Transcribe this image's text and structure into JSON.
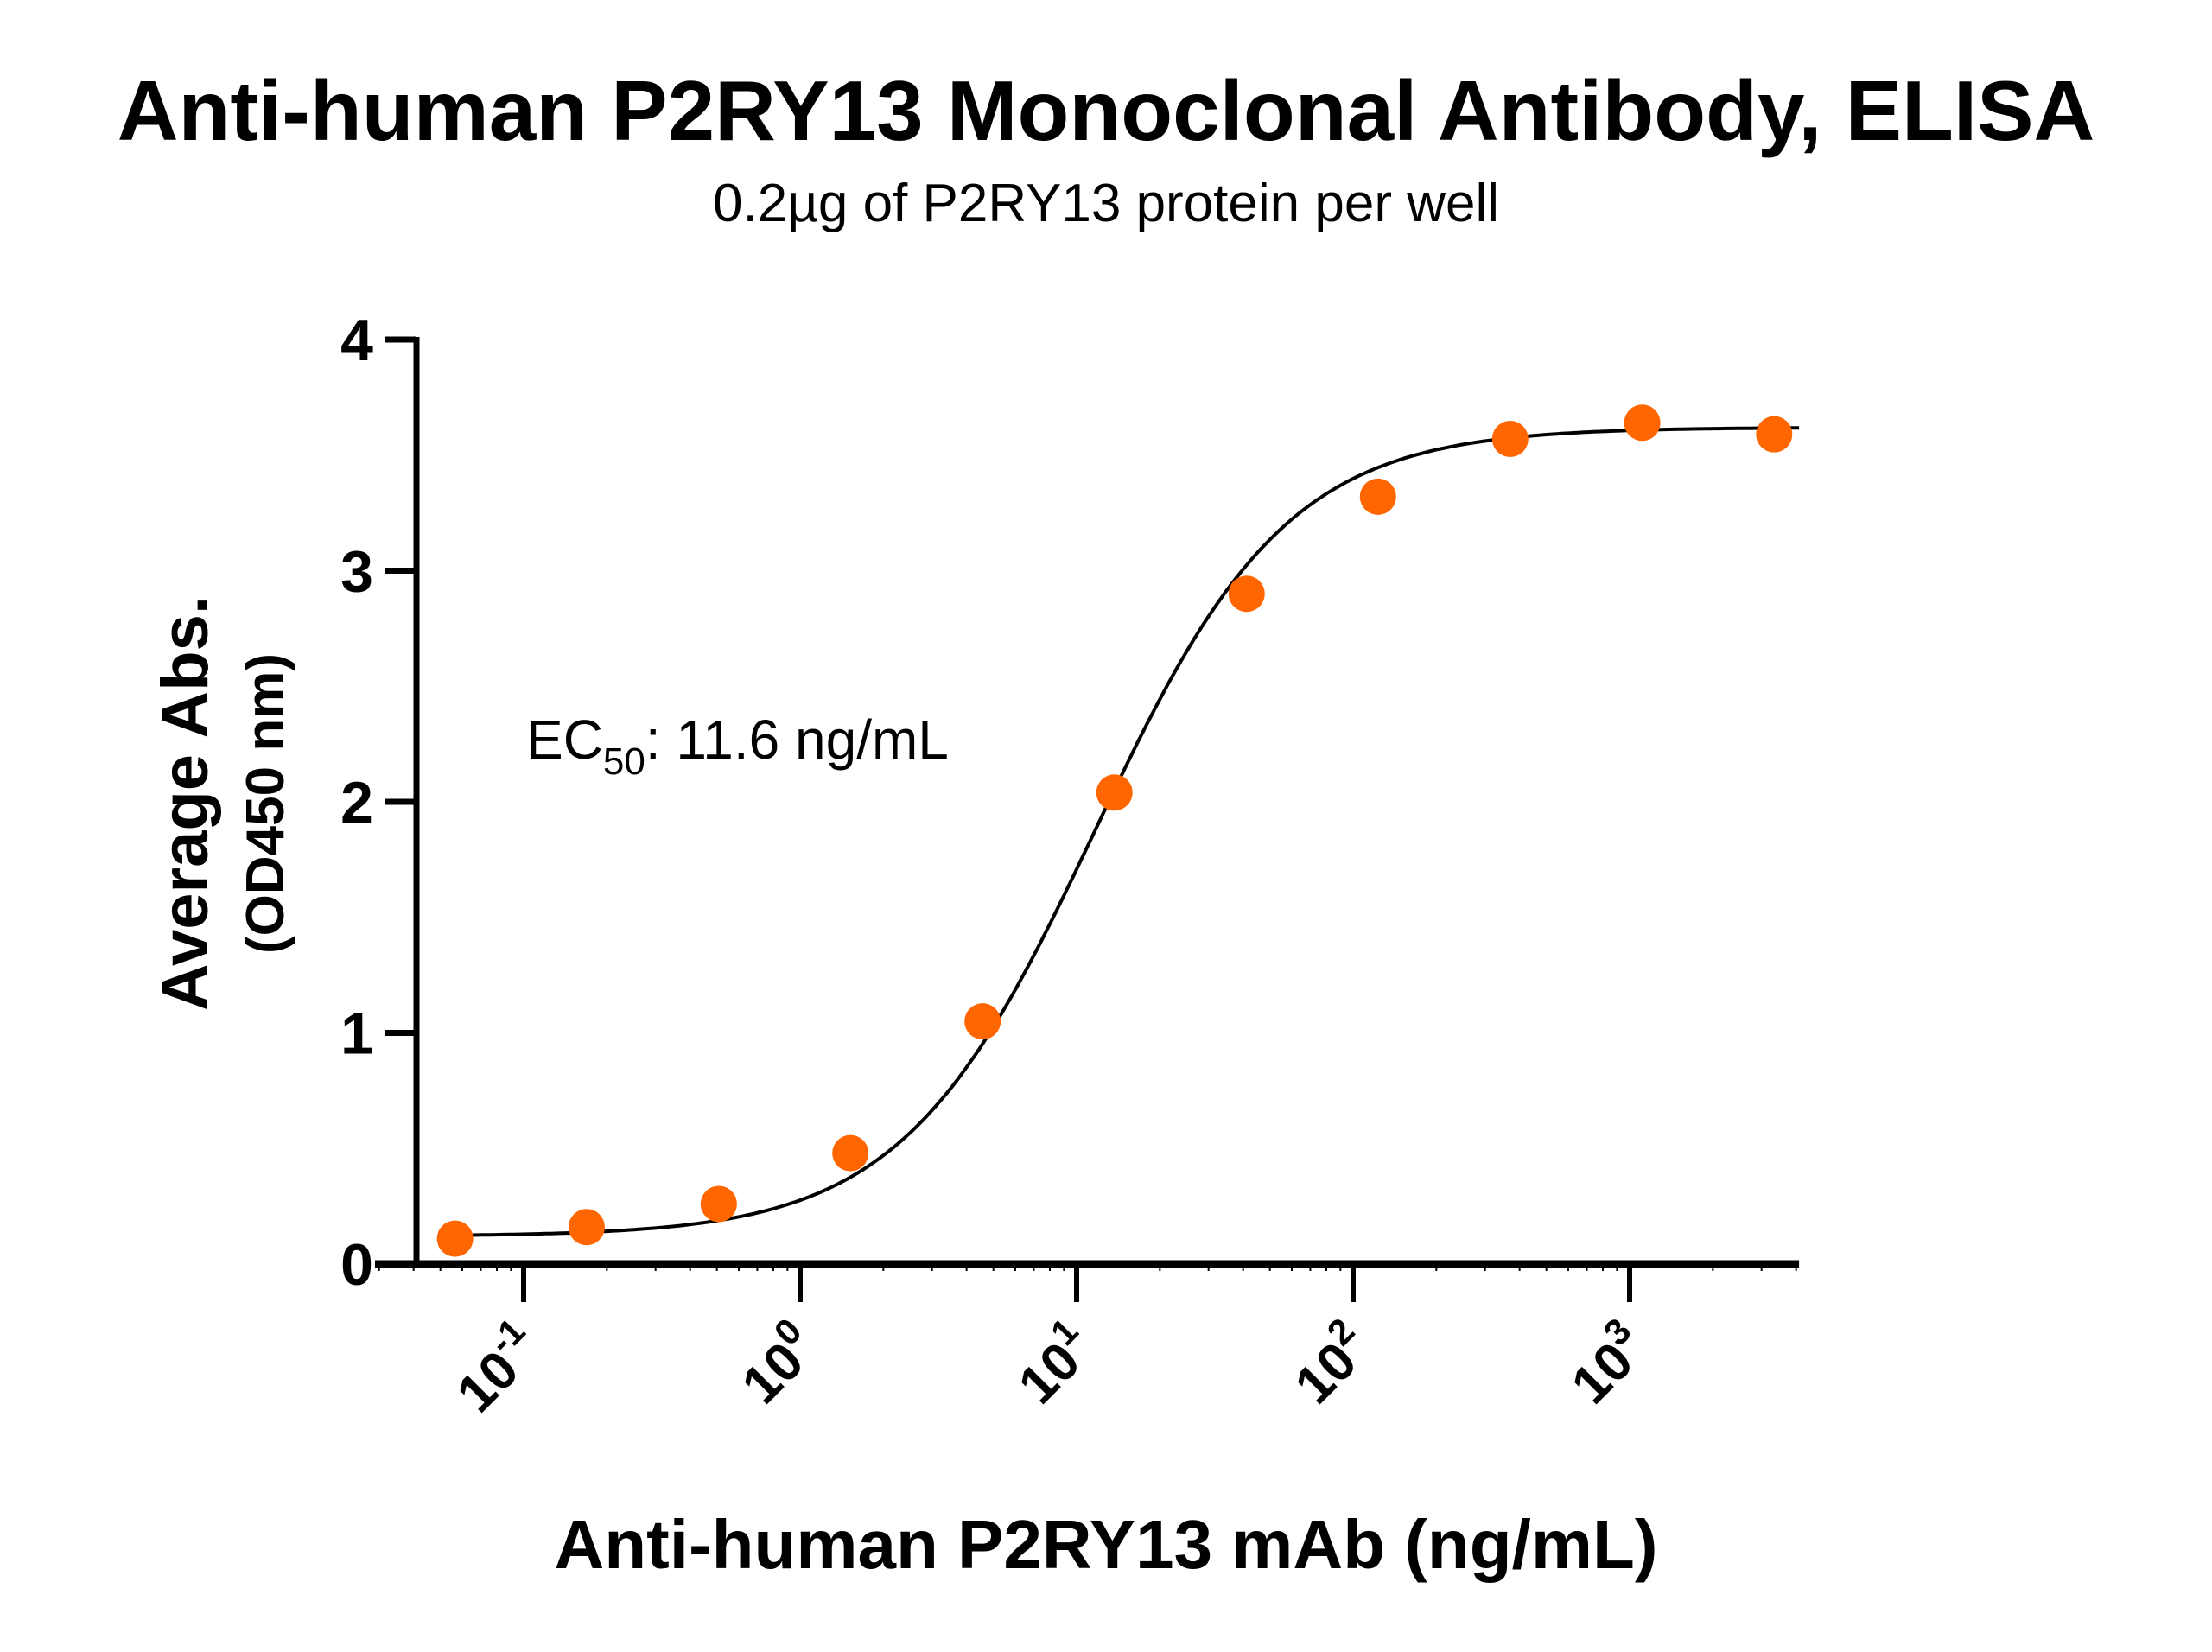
{
  "chart_data": {
    "type": "scatter",
    "title": "Anti-human P2RY13 Monoclonal Antibody, ELISA",
    "subtitle": "0.2µg of P2RY13 protein per well",
    "xlabel": "Anti-human P2RY13 mAb (ng/mL)",
    "ylabel_line1": "Average Abs.",
    "ylabel_line2": "(OD450 nm)",
    "xscale": "log10",
    "xlim": [
      0.029,
      4100
    ],
    "ylim": [
      0,
      4
    ],
    "x_ticks": [
      {
        "value": 0.1,
        "base": "10",
        "exp": "-1"
      },
      {
        "value": 1,
        "base": "10",
        "exp": "0"
      },
      {
        "value": 10,
        "base": "10",
        "exp": "1"
      },
      {
        "value": 100,
        "base": "10",
        "exp": "2"
      },
      {
        "value": 1000,
        "base": "10",
        "exp": "3"
      }
    ],
    "y_ticks": [
      "0",
      "1",
      "2",
      "3",
      "4"
    ],
    "grid": false,
    "annotation": {
      "prefix": "EC",
      "sub": "50",
      "suffix": ": 11.6 ng/mL"
    },
    "point_color": "#FF6600",
    "curve_color": "#000000",
    "series": [
      {
        "name": "Anti-human P2RY13 mAb",
        "x": [
          0.0565,
          0.169,
          0.508,
          1.52,
          4.57,
          13.7,
          41.2,
          123,
          370,
          1111,
          3333
        ],
        "y": [
          0.11,
          0.16,
          0.26,
          0.48,
          1.05,
          2.04,
          2.9,
          3.32,
          3.57,
          3.64,
          3.59
        ]
      }
    ],
    "fit": {
      "model": "4PL",
      "bottom": 0.12,
      "top": 3.62,
      "ec50": 11.6,
      "hill": 1.25
    }
  }
}
